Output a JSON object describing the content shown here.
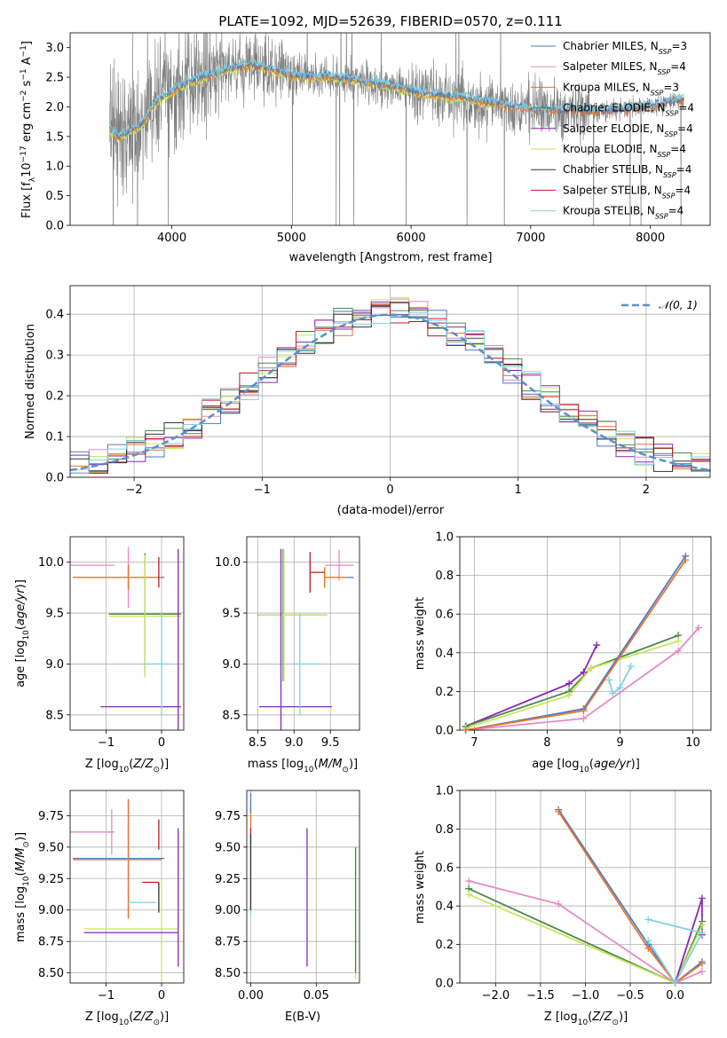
{
  "title": "PLATE=1092, MJD=52639, FIBERID=0570, z=0.111",
  "colors": {
    "Chabrier MILES": "#4e79c6",
    "Salpeter MILES": "#e78ac3",
    "Kroupa MILES": "#e8772e",
    "Chabrier ELODIE": "#4c8a4c",
    "Salpeter ELODIE": "#8b25b5",
    "Kroupa ELODIE": "#c8e65a",
    "Chabrier STELIB": "#333333",
    "Salpeter STELIB": "#c0191e",
    "Kroupa STELIB": "#7fd3e0",
    "data": "#808080",
    "normal": "#5b8fd0"
  },
  "legend_spectrum": [
    {
      "name": "Chabrier MILES",
      "label": "Chabrier MILES, N",
      "sub": "SSP",
      "tail": "=3"
    },
    {
      "name": "Salpeter MILES",
      "label": "Salpeter MILES, N",
      "sub": "SSP",
      "tail": "=4"
    },
    {
      "name": "Kroupa MILES",
      "label": "Kroupa MILES, N",
      "sub": "SSP",
      "tail": "=3"
    },
    {
      "name": "Chabrier ELODIE",
      "label": "Chabrier ELODIE, N",
      "sub": "SSP",
      "tail": "=4"
    },
    {
      "name": "Salpeter ELODIE",
      "label": "Salpeter ELODIE, N",
      "sub": "SSP",
      "tail": "=4"
    },
    {
      "name": "Kroupa ELODIE",
      "label": "Kroupa ELODIE, N",
      "sub": "SSP",
      "tail": "=4"
    },
    {
      "name": "Chabrier STELIB",
      "label": "Chabrier STELIB, N",
      "sub": "SSP",
      "tail": "=4"
    },
    {
      "name": "Salpeter STELIB",
      "label": "Salpeter STELIB, N",
      "sub": "SSP",
      "tail": "=4"
    },
    {
      "name": "Kroupa STELIB",
      "label": "Kroupa STELIB, N",
      "sub": "SSP",
      "tail": "=4"
    }
  ],
  "legend_residual": "𝒩(0, 1)",
  "chart_data": [
    {
      "id": "spectrum",
      "type": "line",
      "xlabel": "wavelength [Angstrom, rest frame]",
      "ylabel": "Flux [f_λ 10^-17 erg cm^-2 s^-1 A^-1]",
      "xlim": [
        3150,
        8500
      ],
      "ylim": [
        0,
        3.25
      ],
      "xticks": [
        4000,
        5000,
        6000,
        7000,
        8000
      ],
      "yticks": [
        0.0,
        0.5,
        1.0,
        1.5,
        2.0,
        2.5,
        3.0
      ],
      "grid": false,
      "legend_position": "upper right",
      "model_continuum": [
        [
          3480,
          1.62
        ],
        [
          3550,
          1.5
        ],
        [
          3650,
          1.6
        ],
        [
          3750,
          1.7
        ],
        [
          3850,
          2.05
        ],
        [
          3950,
          2.2
        ],
        [
          4050,
          2.32
        ],
        [
          4150,
          2.42
        ],
        [
          4250,
          2.5
        ],
        [
          4350,
          2.55
        ],
        [
          4450,
          2.62
        ],
        [
          4550,
          2.67
        ],
        [
          4650,
          2.72
        ],
        [
          4750,
          2.68
        ],
        [
          4850,
          2.62
        ],
        [
          4950,
          2.56
        ],
        [
          5050,
          2.52
        ],
        [
          5150,
          2.5
        ],
        [
          5250,
          2.52
        ],
        [
          5350,
          2.5
        ],
        [
          5450,
          2.48
        ],
        [
          5550,
          2.45
        ],
        [
          5650,
          2.42
        ],
        [
          5750,
          2.38
        ],
        [
          5850,
          2.34
        ],
        [
          5950,
          2.3
        ],
        [
          6050,
          2.25
        ],
        [
          6150,
          2.22
        ],
        [
          6250,
          2.2
        ],
        [
          6350,
          2.18
        ],
        [
          6450,
          2.15
        ],
        [
          6550,
          2.12
        ],
        [
          6650,
          2.08
        ],
        [
          6750,
          2.05
        ],
        [
          6850,
          2.0
        ],
        [
          6950,
          1.98
        ],
        [
          7050,
          1.96
        ],
        [
          7150,
          1.95
        ],
        [
          7250,
          1.94
        ],
        [
          7350,
          1.95
        ],
        [
          7500,
          1.92
        ],
        [
          7700,
          1.95
        ],
        [
          7900,
          2.0
        ],
        [
          8100,
          2.05
        ],
        [
          8250,
          2.12
        ]
      ]
    },
    {
      "id": "residuals",
      "type": "line",
      "xlabel": "(data-model)/error",
      "ylabel": "Normed distribution",
      "xlim": [
        -2.5,
        2.5
      ],
      "ylim": [
        0,
        0.47
      ],
      "xticks": [
        -2,
        -1,
        0,
        1,
        2
      ],
      "yticks": [
        0.0,
        0.1,
        0.2,
        0.3,
        0.4
      ],
      "grid": true,
      "legend_position": "upper right"
    },
    {
      "id": "age_vs_Z",
      "type": "scatter",
      "xlabel": "Z [log10(Z/Z⊙)]",
      "ylabel": "age [log10(age/yr)]",
      "xlim": [
        -1.65,
        0.4
      ],
      "ylim": [
        8.35,
        10.25
      ],
      "xticks": [
        -1,
        0
      ],
      "yticks": [
        8.5,
        9.0,
        9.5,
        10.0
      ],
      "grid": true,
      "points": [
        {
          "series": "Salpeter MILES",
          "x": -1.25,
          "y": 9.97,
          "xerr": [
            0.4,
            0.4
          ],
          "yerr": 0.0
        },
        {
          "series": "Salpeter MILES",
          "x": -0.6,
          "y": 9.85,
          "xerr": [
            0.0,
            0.0
          ],
          "yerr": 0.3
        },
        {
          "series": "Chabrier MILES",
          "x": -0.6,
          "y": 9.85,
          "xerr": [
            1.0,
            0.65
          ],
          "yerr": 0.12
        },
        {
          "series": "Kroupa MILES",
          "x": -0.6,
          "y": 9.85,
          "xerr": [
            1.0,
            0.6
          ],
          "yerr": 0.12
        },
        {
          "series": "Chabrier ELODIE",
          "x": -0.3,
          "y": 9.49,
          "xerr": [
            0.65,
            0.65
          ],
          "yerr": 0.6
        },
        {
          "series": "Kroupa ELODIE",
          "x": -0.3,
          "y": 9.47,
          "xerr": [
            0.65,
            0.65
          ],
          "yerr": 0.6
        },
        {
          "series": "Salpeter ELODIE",
          "x": 0.3,
          "y": 8.58,
          "xerr": [
            1.4,
            0.05
          ],
          "yerr": 1.55
        },
        {
          "series": "Kroupa STELIB",
          "x": 0.0,
          "y": 9.0,
          "xerr": [
            0.3,
            0.15
          ],
          "yerr": 0.5
        },
        {
          "series": "Salpeter STELIB",
          "x": -0.05,
          "y": 9.9,
          "xerr": [
            0.0,
            0.0
          ],
          "yerr": 0.15
        }
      ]
    },
    {
      "id": "age_vs_mass",
      "type": "scatter",
      "xlabel": "mass [log10(M/M⊙)]",
      "ylabel": "",
      "xlim": [
        8.35,
        9.9
      ],
      "ylim": [
        8.35,
        10.25
      ],
      "xticks": [
        8.5,
        9.0,
        9.5
      ],
      "yticks": [
        8.5,
        9.0,
        9.5,
        10.0
      ],
      "grid": true,
      "points": [
        {
          "series": "Salpeter MILES",
          "x": 9.62,
          "y": 9.97,
          "xerr": [
            0.2,
            0.2
          ],
          "yerr": 0.15
        },
        {
          "series": "Chabrier MILES",
          "x": 9.42,
          "y": 9.85,
          "xerr": [
            0.0,
            0.4
          ],
          "yerr": 0.1
        },
        {
          "series": "Kroupa MILES",
          "x": 9.42,
          "y": 9.85,
          "xerr": [
            0.0,
            0.3
          ],
          "yerr": 0.1
        },
        {
          "series": "Chabrier ELODIE",
          "x": 8.85,
          "y": 9.48,
          "xerr": [
            0.35,
            0.6
          ],
          "yerr": 0.65
        },
        {
          "series": "Kroupa ELODIE",
          "x": 8.86,
          "y": 9.48,
          "xerr": [
            0.35,
            0.6
          ],
          "yerr": 0.65
        },
        {
          "series": "Salpeter ELODIE",
          "x": 8.82,
          "y": 8.58,
          "xerr": [
            0.3,
            0.7
          ],
          "yerr": 1.55
        },
        {
          "series": "Kroupa STELIB",
          "x": 9.08,
          "y": 9.0,
          "xerr": [
            0.1,
            0.3
          ],
          "yerr": 0.5
        },
        {
          "series": "Salpeter STELIB",
          "x": 9.22,
          "y": 9.9,
          "xerr": [
            0.0,
            0.2
          ],
          "yerr": 0.2
        }
      ]
    },
    {
      "id": "massweight_vs_age",
      "type": "line",
      "xlabel": "age [log10(age/yr)]",
      "ylabel": "mass weight",
      "xlim": [
        6.8,
        10.25
      ],
      "ylim": [
        0,
        1.0
      ],
      "xticks": [
        7,
        8,
        9,
        10
      ],
      "yticks": [
        0.0,
        0.2,
        0.4,
        0.6,
        0.8,
        1.0
      ],
      "grid": true,
      "series": [
        {
          "name": "Salpeter ELODIE",
          "points": [
            [
              6.88,
              0.02
            ],
            [
              8.3,
              0.24
            ],
            [
              8.5,
              0.3
            ],
            [
              8.68,
              0.44
            ]
          ]
        },
        {
          "name": "Chabrier ELODIE",
          "points": [
            [
              6.88,
              0.02
            ],
            [
              8.3,
              0.2
            ],
            [
              8.6,
              0.32
            ],
            [
              9.8,
              0.49
            ]
          ]
        },
        {
          "name": "Kroupa ELODIE",
          "points": [
            [
              6.88,
              0.01
            ],
            [
              8.3,
              0.18
            ],
            [
              8.6,
              0.32
            ],
            [
              9.8,
              0.46
            ]
          ]
        },
        {
          "name": "Salpeter MILES",
          "points": [
            [
              6.88,
              0.0
            ],
            [
              8.5,
              0.06
            ],
            [
              9.8,
              0.41
            ],
            [
              10.08,
              0.53
            ]
          ]
        },
        {
          "name": "Chabrier MILES",
          "points": [
            [
              6.88,
              0.0
            ],
            [
              8.5,
              0.11
            ],
            [
              9.9,
              0.9
            ]
          ]
        },
        {
          "name": "Kroupa MILES",
          "points": [
            [
              6.88,
              0.0
            ],
            [
              8.5,
              0.1
            ],
            [
              9.9,
              0.88
            ]
          ]
        },
        {
          "name": "Kroupa STELIB",
          "points": [
            [
              8.85,
              0.26
            ],
            [
              8.9,
              0.19
            ],
            [
              9.0,
              0.22
            ],
            [
              9.15,
              0.33
            ]
          ]
        }
      ]
    },
    {
      "id": "mass_vs_Z",
      "type": "scatter",
      "xlabel": "Z [log10(Z/Z⊙)]",
      "ylabel": "mass [log10(M/M⊙)]",
      "xlim": [
        -1.65,
        0.4
      ],
      "ylim": [
        8.42,
        9.95
      ],
      "xticks": [
        -1,
        0
      ],
      "yticks": [
        8.5,
        8.75,
        9.0,
        9.25,
        9.5,
        9.75
      ],
      "grid": true,
      "points": [
        {
          "series": "Salpeter MILES",
          "x": -1.25,
          "y": 9.62,
          "xerr": [
            0.4,
            0.4
          ],
          "yerr": 0.0
        },
        {
          "series": "Salpeter MILES",
          "x": -0.9,
          "y": 9.62,
          "xerr": [
            0.0,
            0.0
          ],
          "yerr": 0.18
        },
        {
          "series": "Chabrier MILES",
          "x": -0.6,
          "y": 9.41,
          "xerr": [
            1.0,
            0.65
          ],
          "yerr": 0.47
        },
        {
          "series": "Kroupa MILES",
          "x": -0.6,
          "y": 9.4,
          "xerr": [
            1.0,
            0.6
          ],
          "yerr": 0.47
        },
        {
          "series": "Salpeter STELIB",
          "x": -0.05,
          "y": 9.22,
          "xerr": [
            0.3,
            0.0
          ],
          "yerr": 0.0
        },
        {
          "series": "Salpeter STELIB",
          "x": -0.05,
          "y": 9.6,
          "xerr": [
            0.0,
            0.0
          ],
          "yerr": 0.12
        },
        {
          "series": "Kroupa STELIB",
          "x": -0.3,
          "y": 9.06,
          "xerr": [
            0.3,
            0.2
          ],
          "yerr": 0.0
        },
        {
          "series": "Chabrier STELIB",
          "x": -0.05,
          "y": 9.1,
          "xerr": [
            0.0,
            0.0
          ],
          "yerr": 0.12
        },
        {
          "series": "Kroupa ELODIE",
          "x": -0.3,
          "y": 8.85,
          "xerr": [
            1.1,
            0.6
          ],
          "yerr": 0.0
        },
        {
          "series": "Kroupa ELODIE",
          "x": 0.0,
          "y": 8.85,
          "xerr": [
            0.0,
            0.0
          ],
          "yerr": 0.4
        },
        {
          "series": "Salpeter ELODIE",
          "x": -0.3,
          "y": 8.82,
          "xerr": [
            1.1,
            0.6
          ],
          "yerr": 0.0
        },
        {
          "series": "Salpeter ELODIE",
          "x": 0.3,
          "y": 9.1,
          "xerr": [
            0.0,
            0.0
          ],
          "yerr": 0.55
        }
      ]
    },
    {
      "id": "mass_vs_ebv",
      "type": "scatter",
      "xlabel": "E(B-V)",
      "ylabel": "",
      "xlim": [
        -0.003,
        0.083
      ],
      "ylim": [
        8.42,
        9.95
      ],
      "xticks": [
        0.0,
        0.05
      ],
      "yticks": [
        8.5,
        8.75,
        9.0,
        9.25,
        9.5,
        9.75
      ],
      "grid": true,
      "points": [
        {
          "series": "Kroupa MILES",
          "x": 0.0,
          "y": 9.72,
          "yerr": 0.1
        },
        {
          "series": "Chabrier MILES",
          "x": 0.0,
          "y": 9.85,
          "yerr": 0.08
        },
        {
          "series": "Salpeter STELIB",
          "x": 0.0,
          "y": 9.6,
          "yerr": 0.05
        },
        {
          "series": "Kroupa STELIB",
          "x": 0.0,
          "y": 9.25,
          "yerr": 0.3
        },
        {
          "series": "Chabrier STELIB",
          "x": 0.0,
          "y": 9.3,
          "yerr": 0.3
        },
        {
          "series": "Salpeter ELODIE",
          "x": 0.043,
          "y": 9.1,
          "yerr": 0.55
        },
        {
          "series": "Kroupa ELODIE",
          "x": 0.08,
          "y": 8.97,
          "yerr": 0.52
        },
        {
          "series": "Chabrier ELODIE",
          "x": 0.08,
          "y": 9.0,
          "yerr": 0.5
        }
      ]
    },
    {
      "id": "massweight_vs_Z",
      "type": "line",
      "xlabel": "Z [log10(Z/Z⊙)]",
      "ylabel": "mass weight",
      "xlim": [
        -2.4,
        0.4
      ],
      "ylim": [
        0,
        1.0
      ],
      "xticks": [
        -2.0,
        -1.5,
        -1.0,
        -0.5,
        0.0
      ],
      "yticks": [
        0.0,
        0.2,
        0.4,
        0.6,
        0.8,
        1.0
      ],
      "grid": true,
      "series": [
        {
          "name": "Chabrier MILES",
          "points": [
            [
              -1.3,
              0.9
            ],
            [
              -0.3,
              0.2
            ],
            [
              0.0,
              0.0
            ],
            [
              0.3,
              0.11
            ]
          ]
        },
        {
          "name": "Kroupa MILES",
          "points": [
            [
              -1.3,
              0.89
            ],
            [
              -0.3,
              0.18
            ],
            [
              0.0,
              0.0
            ],
            [
              0.3,
              0.1
            ]
          ]
        },
        {
          "name": "Salpeter MILES",
          "points": [
            [
              -2.3,
              0.53
            ],
            [
              -1.3,
              0.41
            ],
            [
              0.0,
              0.0
            ],
            [
              0.3,
              0.06
            ]
          ]
        },
        {
          "name": "Chabrier ELODIE",
          "points": [
            [
              -2.3,
              0.49
            ],
            [
              0.0,
              0.0
            ],
            [
              0.3,
              0.32
            ]
          ]
        },
        {
          "name": "Kroupa ELODIE",
          "points": [
            [
              -2.3,
              0.46
            ],
            [
              0.0,
              0.0
            ],
            [
              0.3,
              0.3
            ]
          ]
        },
        {
          "name": "Salpeter ELODIE",
          "points": [
            [
              0.0,
              0.0
            ],
            [
              0.3,
              0.44
            ],
            [
              0.3,
              0.25
            ]
          ]
        },
        {
          "name": "Kroupa STELIB",
          "points": [
            [
              -0.3,
              0.33
            ],
            [
              0.3,
              0.26
            ],
            [
              0.0,
              0.0
            ],
            [
              -0.3,
              0.22
            ]
          ]
        }
      ]
    }
  ]
}
